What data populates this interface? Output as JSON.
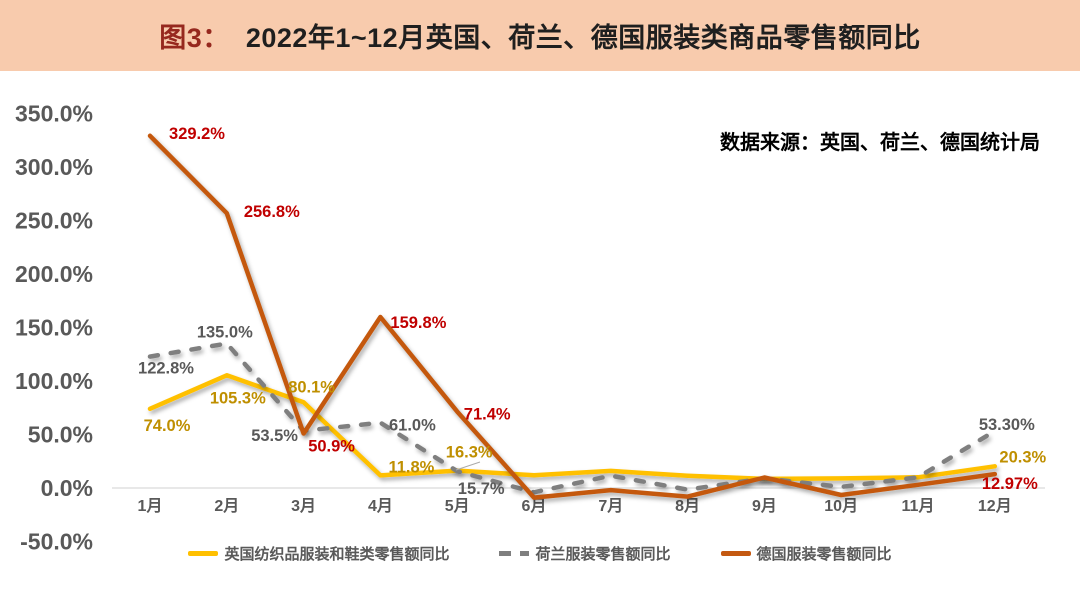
{
  "header": {
    "figure_label": "图3：",
    "title": "2022年1~12月英国、荷兰、德国服装类商品零售额同比"
  },
  "source_note": "数据来源：英国、荷兰、德国统计局",
  "colors": {
    "header_bg": "#F8CBAD",
    "figure_label_text": "#96281E",
    "title_text": "#1F1F1F",
    "axis_text": "#595959",
    "zero_line": "#D9D9D9",
    "leader_line": "#ABABAB",
    "uk_line": "#FFC000",
    "nl_line": "#7F7F7F",
    "de_line": "#C45911",
    "uk_label": "#BF8F00",
    "nl_label": "#595959",
    "de_label": "#C00000"
  },
  "legend": {
    "items": [
      {
        "id": "uk",
        "label": "英国纺织品服装和鞋类零售额同比",
        "style": "solid",
        "color": "#FFC000"
      },
      {
        "id": "nl",
        "label": "荷兰服装零售额同比",
        "style": "dashed",
        "color": "#7F7F7F"
      },
      {
        "id": "de",
        "label": "德国服装零售额同比",
        "style": "solid",
        "color": "#C45911"
      }
    ]
  },
  "chart_data": {
    "type": "line",
    "title": "2022年1~12月英国、荷兰、德国服装类商品零售额同比",
    "categories": [
      "1月",
      "2月",
      "3月",
      "4月",
      "5月",
      "6月",
      "7月",
      "8月",
      "9月",
      "10月",
      "11月",
      "12月"
    ],
    "y_ticks": [
      "350.0%",
      "300.0%",
      "250.0%",
      "200.0%",
      "150.0%",
      "100.0%",
      "50.0%",
      "0.0%",
      "-50.0%"
    ],
    "ylim": [
      -50,
      350
    ],
    "unit": "percent (YoY)",
    "grid": false,
    "legend_position": "bottom",
    "series": [
      {
        "id": "uk",
        "name": "英国纺织品服装和鞋类零售额同比",
        "color": "#FFC000",
        "dashed": false,
        "values": [
          74.0,
          105.3,
          80.1,
          11.8,
          16.3,
          12.0,
          16.0,
          11.5,
          8.5,
          9.0,
          10.0,
          20.3
        ]
      },
      {
        "id": "nl",
        "name": "荷兰服装零售额同比",
        "color": "#7F7F7F",
        "dashed": true,
        "values": [
          122.8,
          135.0,
          53.5,
          61.0,
          15.7,
          -4.0,
          11.5,
          -1.5,
          9.0,
          1.0,
          10.0,
          53.3
        ]
      },
      {
        "id": "de",
        "name": "德国服装零售额同比",
        "color": "#C45911",
        "dashed": false,
        "values": [
          329.2,
          256.8,
          50.9,
          159.8,
          71.4,
          -9.0,
          -2.0,
          -8.0,
          9.8,
          -6.5,
          3.0,
          12.97
        ]
      }
    ],
    "annotations": [
      {
        "series": "uk",
        "month": 0,
        "text": "74.0%"
      },
      {
        "series": "uk",
        "month": 1,
        "text": "105.3%"
      },
      {
        "series": "uk",
        "month": 2,
        "text": "80.1%"
      },
      {
        "series": "uk",
        "month": 3,
        "text": "11.8%"
      },
      {
        "series": "uk",
        "month": 4,
        "text": "16.3%"
      },
      {
        "series": "uk",
        "month": 11,
        "text": "20.3%"
      },
      {
        "series": "nl",
        "month": 0,
        "text": "122.8%"
      },
      {
        "series": "nl",
        "month": 1,
        "text": "135.0%"
      },
      {
        "series": "nl",
        "month": 2,
        "text": "53.5%"
      },
      {
        "series": "nl",
        "month": 3,
        "text": "61.0%"
      },
      {
        "series": "nl",
        "month": 4,
        "text": "15.7%"
      },
      {
        "series": "nl",
        "month": 11,
        "text": "53.30%"
      },
      {
        "series": "de",
        "month": 0,
        "text": "329.2%"
      },
      {
        "series": "de",
        "month": 1,
        "text": "256.8%"
      },
      {
        "series": "de",
        "month": 2,
        "text": "50.9%"
      },
      {
        "series": "de",
        "month": 3,
        "text": "159.8%"
      },
      {
        "series": "de",
        "month": 4,
        "text": "71.4%"
      },
      {
        "series": "de",
        "month": 11,
        "text": "12.97%"
      }
    ]
  }
}
